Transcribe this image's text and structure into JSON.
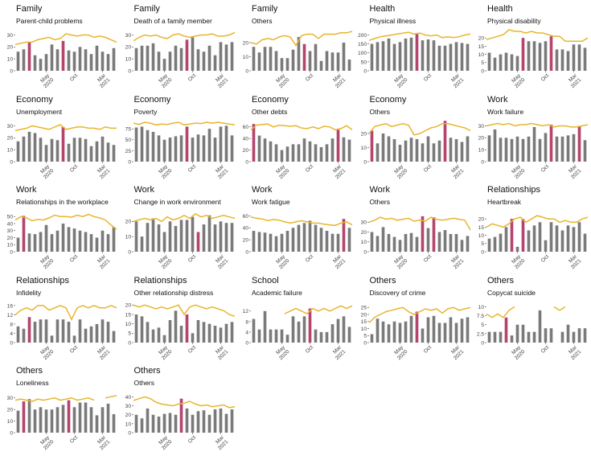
{
  "figure": {
    "colors": {
      "bar": "#7a7a7a",
      "highlight": "#b5446e",
      "line": "#e8b52c"
    },
    "xticks": [
      "May\n2020",
      "Oct",
      "Mar\n2021"
    ]
  },
  "chart_data": [
    {
      "type": "bar",
      "category": "Family",
      "subcategory": "Parent-child problems",
      "yticks": [
        0,
        10,
        20,
        30
      ],
      "ylim": [
        0,
        33
      ],
      "values": [
        16,
        18,
        24,
        13,
        10,
        14,
        22,
        18,
        25,
        17,
        16,
        20,
        18,
        14,
        21,
        16,
        14,
        19
      ],
      "highlight": [
        2,
        8
      ],
      "line": [
        22,
        23,
        24,
        24,
        26,
        27,
        28,
        26,
        27,
        31,
        30,
        29,
        30,
        30,
        28,
        29,
        28,
        26,
        24
      ]
    },
    {
      "type": "bar",
      "category": "Family",
      "subcategory": "Death of a family member",
      "yticks": [
        0,
        10,
        20,
        30
      ],
      "ylim": [
        0,
        33
      ],
      "values": [
        19,
        21,
        21,
        23,
        16,
        10,
        16,
        21,
        19,
        26,
        28,
        18,
        16,
        21,
        13,
        24,
        22,
        24
      ],
      "highlight": [
        9
      ],
      "line": [
        25,
        28,
        30,
        29,
        30,
        28,
        27,
        30,
        31,
        29,
        28,
        29,
        30,
        30,
        31,
        29,
        29,
        30,
        32
      ]
    },
    {
      "type": "bar",
      "category": "Family",
      "subcategory": "Others",
      "yticks": [
        0,
        10,
        20
      ],
      "ylim": [
        0,
        28
      ],
      "values": [
        17,
        13,
        17,
        17,
        14,
        9,
        9,
        15,
        24,
        19,
        14,
        19,
        7,
        14,
        13,
        13,
        20,
        8
      ],
      "highlight": [
        9
      ],
      "line": [
        20,
        19,
        22,
        23,
        22,
        24,
        25,
        24,
        18,
        25,
        26,
        26,
        23,
        26,
        26,
        26,
        27,
        27,
        28
      ]
    },
    {
      "type": "bar",
      "category": "Health",
      "subcategory": "Physical illness",
      "yticks": [
        0,
        50,
        100,
        150,
        200
      ],
      "ylim": [
        0,
        220
      ],
      "values": [
        150,
        160,
        165,
        180,
        150,
        160,
        180,
        185,
        205,
        170,
        175,
        170,
        140,
        140,
        150,
        160,
        155,
        150
      ],
      "highlight": [
        8
      ],
      "line": [
        170,
        180,
        190,
        195,
        200,
        205,
        210,
        215,
        205,
        210,
        200,
        195,
        200,
        185,
        190,
        185,
        190,
        200,
        205
      ]
    },
    {
      "type": "bar",
      "category": "Health",
      "subcategory": "Physical disability",
      "yticks": [
        0,
        5,
        10,
        15,
        20
      ],
      "ylim": [
        0,
        24
      ],
      "values": [
        11,
        8,
        10,
        11,
        10,
        9,
        20,
        18,
        18,
        17,
        18,
        21,
        13,
        13,
        12,
        16,
        16,
        14
      ],
      "highlight": [
        6,
        11
      ],
      "line": [
        19,
        20,
        21,
        22,
        25,
        24,
        24,
        23,
        24,
        23,
        23,
        22,
        21,
        21,
        18,
        18,
        18,
        18,
        20
      ]
    },
    {
      "type": "bar",
      "category": "Economy",
      "subcategory": "Unemployment",
      "yticks": [
        0,
        10,
        20,
        30
      ],
      "ylim": [
        0,
        33
      ],
      "values": [
        17,
        21,
        25,
        24,
        20,
        14,
        19,
        18,
        29,
        15,
        20,
        20,
        19,
        13,
        17,
        21,
        16,
        14
      ],
      "highlight": [
        8
      ],
      "line": [
        26,
        27,
        28,
        30,
        29,
        28,
        27,
        29,
        31,
        27,
        28,
        29,
        29,
        28,
        28,
        27,
        29,
        28,
        28
      ]
    },
    {
      "type": "bar",
      "category": "Economy",
      "subcategory": "Poverty",
      "yticks": [
        0,
        25,
        50,
        75
      ],
      "ylim": [
        0,
        90
      ],
      "values": [
        78,
        80,
        72,
        68,
        60,
        50,
        55,
        58,
        60,
        80,
        55,
        62,
        60,
        75,
        55,
        80,
        82,
        60
      ],
      "highlight": [
        9
      ],
      "line": [
        88,
        85,
        90,
        88,
        84,
        86,
        85,
        88,
        90,
        84,
        86,
        88,
        87,
        90,
        88,
        90,
        88,
        86,
        84
      ]
    },
    {
      "type": "bar",
      "category": "Economy",
      "subcategory": "Other debts",
      "yticks": [
        0,
        20,
        40,
        60
      ],
      "ylim": [
        0,
        68
      ],
      "values": [
        65,
        45,
        40,
        35,
        30,
        20,
        26,
        30,
        30,
        40,
        35,
        30,
        25,
        30,
        40,
        55,
        42,
        38
      ],
      "highlight": [
        0,
        15
      ],
      "line": [
        55,
        63,
        64,
        65,
        60,
        63,
        62,
        61,
        62,
        58,
        57,
        60,
        57,
        61,
        60,
        55,
        57,
        62,
        55
      ]
    },
    {
      "type": "bar",
      "category": "Economy",
      "subcategory": "Others",
      "yticks": [
        0,
        10,
        20
      ],
      "ylim": [
        0,
        28
      ],
      "values": [
        22,
        13,
        20,
        18,
        16,
        12,
        15,
        17,
        16,
        13,
        18,
        13,
        15,
        29,
        17,
        16,
        14,
        18
      ],
      "highlight": [
        0,
        13
      ],
      "line": [
        20,
        25,
        26,
        27,
        25,
        26,
        27,
        26,
        19,
        20,
        22,
        24,
        25,
        27,
        27,
        26,
        25,
        24,
        22
      ]
    },
    {
      "type": "bar",
      "category": "Work",
      "subcategory": "Work failure",
      "yticks": [
        0,
        10,
        20,
        30
      ],
      "ylim": [
        0,
        33
      ],
      "values": [
        22,
        27,
        20,
        20,
        19,
        21,
        19,
        21,
        29,
        19,
        24,
        31,
        21,
        21,
        22,
        23,
        30,
        18
      ],
      "highlight": [
        11,
        16
      ],
      "line": [
        30,
        31,
        32,
        31,
        32,
        30,
        31,
        31,
        32,
        31,
        30,
        31,
        29,
        30,
        30,
        29,
        29,
        30,
        31
      ]
    },
    {
      "type": "bar",
      "category": "Work",
      "subcategory": "Relationships in the workplace",
      "yticks": [
        0,
        10,
        20,
        30,
        40,
        50
      ],
      "ylim": [
        0,
        56
      ],
      "values": [
        20,
        51,
        26,
        25,
        28,
        38,
        25,
        30,
        40,
        35,
        33,
        30,
        28,
        25,
        20,
        30,
        25,
        35
      ],
      "highlight": [
        1
      ],
      "line": [
        45,
        50,
        48,
        44,
        46,
        45,
        48,
        52,
        50,
        50,
        49,
        52,
        50,
        53,
        50,
        48,
        45,
        38,
        32
      ]
    },
    {
      "type": "bar",
      "category": "Work",
      "subcategory": "Change in work environment",
      "yticks": [
        0,
        10,
        20
      ],
      "ylim": [
        0,
        26
      ],
      "values": [
        20,
        10,
        19,
        22,
        18,
        13,
        20,
        17,
        21,
        21,
        23,
        13,
        18,
        24,
        18,
        20,
        19,
        19
      ],
      "highlight": [
        11
      ],
      "line": [
        20,
        21,
        22,
        21,
        22,
        20,
        23,
        21,
        22,
        24,
        22,
        25,
        23,
        24,
        22,
        23,
        24,
        23,
        22
      ]
    },
    {
      "type": "bar",
      "category": "Work",
      "subcategory": "Work fatigue",
      "yticks": [
        0,
        20,
        40,
        60
      ],
      "ylim": [
        0,
        66
      ],
      "values": [
        35,
        33,
        32,
        30,
        26,
        30,
        35,
        40,
        45,
        48,
        52,
        45,
        40,
        35,
        30,
        30,
        55,
        40
      ],
      "highlight": [
        16
      ],
      "line": [
        58,
        56,
        55,
        52,
        54,
        53,
        50,
        48,
        50,
        52,
        50,
        48,
        48,
        46,
        45,
        44,
        48,
        50,
        45
      ]
    },
    {
      "type": "bar",
      "category": "Work",
      "subcategory": "Others",
      "yticks": [
        0,
        10,
        20,
        30
      ],
      "ylim": [
        0,
        40
      ],
      "values": [
        20,
        16,
        25,
        18,
        15,
        12,
        18,
        19,
        15,
        36,
        24,
        35,
        20,
        22,
        18,
        18,
        12,
        16
      ],
      "highlight": [
        9,
        11
      ],
      "line": [
        30,
        32,
        35,
        33,
        34,
        32,
        33,
        34,
        31,
        32,
        31,
        35,
        33,
        32,
        33,
        34,
        33,
        32,
        22
      ]
    },
    {
      "type": "bar",
      "category": "Relationships",
      "subcategory": "Heartbreak",
      "yticks": [
        0,
        5,
        10,
        15,
        20
      ],
      "ylim": [
        0,
        24
      ],
      "values": [
        8,
        9,
        11,
        15,
        20,
        3,
        20,
        13,
        16,
        18,
        7,
        18,
        16,
        13,
        16,
        15,
        18,
        11
      ],
      "highlight": [
        4,
        6
      ],
      "line": [
        15,
        17,
        16,
        15,
        17,
        20,
        21,
        18,
        20,
        22,
        21,
        20,
        20,
        18,
        19,
        18,
        18,
        20,
        21
      ]
    },
    {
      "type": "bar",
      "category": "Relationships",
      "subcategory": "Infidelity",
      "yticks": [
        0,
        4,
        8,
        12,
        16
      ],
      "ylim": [
        0,
        17
      ],
      "values": [
        7,
        6,
        11,
        9,
        10,
        10,
        3,
        10,
        10,
        9,
        3,
        10,
        6,
        7,
        8,
        10,
        9,
        5
      ],
      "highlight": [
        2
      ],
      "line": [
        12,
        14,
        15,
        14,
        16,
        16,
        14,
        15,
        16,
        15,
        10,
        15,
        16,
        15,
        16,
        15,
        15,
        16,
        15
      ]
    },
    {
      "type": "bar",
      "category": "Relationships",
      "subcategory": "Other relationship distress",
      "yticks": [
        0,
        5,
        10,
        15,
        20
      ],
      "ylim": [
        0,
        21
      ],
      "values": [
        15,
        14,
        11,
        7,
        8,
        4,
        12,
        17,
        9,
        15,
        5,
        12,
        11,
        10,
        9,
        8,
        10,
        11
      ],
      "highlight": [
        9
      ],
      "line": [
        20,
        19,
        20,
        19,
        18,
        19,
        18,
        19,
        20,
        15,
        19,
        20,
        19,
        18,
        19,
        18,
        17,
        15,
        14
      ]
    },
    {
      "type": "bar",
      "category": "School",
      "subcategory": "Academic failure",
      "yticks": [
        0,
        4,
        8,
        12
      ],
      "ylim": [
        0,
        15
      ],
      "values": [
        9,
        5,
        12,
        5,
        5,
        5,
        3,
        10,
        8,
        10,
        13,
        5,
        4,
        4,
        7,
        9,
        10,
        6
      ],
      "highlight": [
        10
      ],
      "line": [
        null,
        null,
        null,
        null,
        null,
        null,
        11,
        12,
        13,
        12,
        11,
        13,
        12,
        13,
        12,
        13,
        14,
        13,
        14
      ]
    },
    {
      "type": "bar",
      "category": "Others",
      "subcategory": "Discovery of crime",
      "yticks": [
        0,
        5,
        10,
        15,
        20,
        25
      ],
      "ylim": [
        0,
        28
      ],
      "values": [
        6,
        17,
        15,
        13,
        15,
        14,
        15,
        19,
        22,
        10,
        18,
        19,
        14,
        14,
        18,
        14,
        17,
        18
      ],
      "highlight": [
        8
      ],
      "line": [
        14,
        18,
        20,
        22,
        23,
        24,
        25,
        22,
        20,
        22,
        24,
        23,
        24,
        21,
        24,
        25,
        23,
        24,
        25
      ]
    },
    {
      "type": "bar",
      "category": "Others",
      "subcategory": "Copycat suicide",
      "yticks": [
        0.0,
        2.5,
        5.0,
        7.5,
        10.0
      ],
      "ylim": [
        0,
        11
      ],
      "values": [
        3,
        3,
        3,
        7,
        2,
        5,
        5,
        3,
        3,
        9,
        4,
        4,
        0,
        3,
        5,
        3,
        4,
        4
      ],
      "highlight": [
        3
      ],
      "line": [
        8,
        7,
        8,
        7,
        9,
        10,
        null,
        null,
        null,
        null,
        null,
        null,
        10,
        9,
        10,
        null,
        null,
        null,
        null
      ]
    },
    {
      "type": "bar",
      "category": "Others",
      "subcategory": "Loneliness",
      "yticks": [
        0,
        10,
        20,
        30
      ],
      "ylim": [
        0,
        34
      ],
      "values": [
        19,
        27,
        29,
        20,
        22,
        20,
        20,
        22,
        24,
        28,
        22,
        26,
        26,
        22,
        15,
        22,
        25,
        16
      ],
      "highlight": [
        1,
        9
      ],
      "line": [
        28,
        29,
        28,
        27,
        29,
        28,
        29,
        30,
        28,
        29,
        30,
        28,
        29,
        30,
        28,
        null,
        30,
        31,
        32
      ]
    },
    {
      "type": "bar",
      "category": "Others",
      "subcategory": "Others",
      "yticks": [
        0,
        10,
        20,
        30,
        40
      ],
      "ylim": [
        0,
        44
      ],
      "values": [
        20,
        16,
        27,
        20,
        18,
        21,
        22,
        20,
        38,
        27,
        20,
        24,
        25,
        20,
        26,
        27,
        21,
        26
      ],
      "highlight": [
        8
      ],
      "line": [
        36,
        38,
        40,
        38,
        34,
        32,
        31,
        30,
        32,
        33,
        35,
        32,
        30,
        31,
        29,
        30,
        31,
        28,
        29
      ]
    }
  ]
}
